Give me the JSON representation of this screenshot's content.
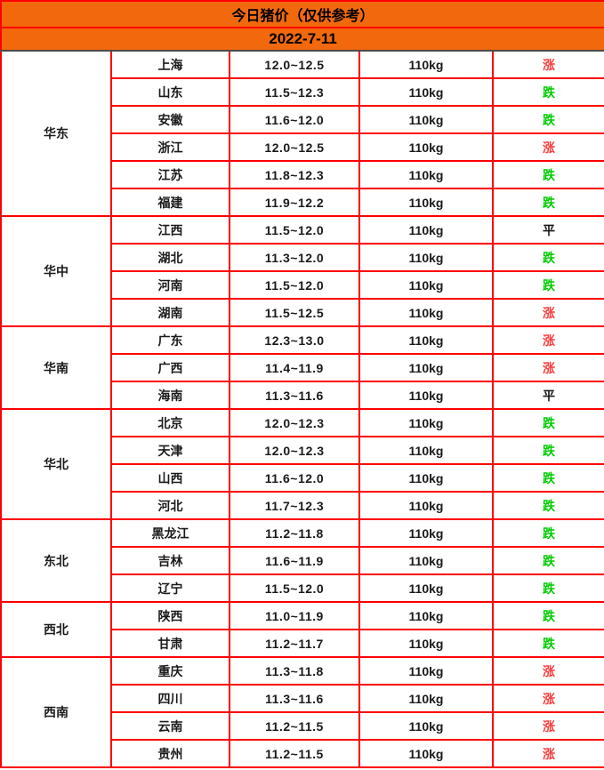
{
  "header": {
    "title": "今日猪价（仅供参考）",
    "date": "2022-7-11"
  },
  "colors": {
    "header_bg": "#f2690d",
    "border_red": "#fe0000",
    "dark_line": "#4a4a4a",
    "text": "#1a1a1a",
    "trend": {
      "涨": "#fa3c3c",
      "跌": "#00cc00",
      "平": "#1a1a1a"
    }
  },
  "table": {
    "regions": [
      {
        "name": "华东",
        "rows": [
          {
            "province": "上海",
            "price": "12.0~12.5",
            "weight": "110kg",
            "trend": "涨"
          },
          {
            "province": "山东",
            "price": "11.5~12.3",
            "weight": "110kg",
            "trend": "跌"
          },
          {
            "province": "安徽",
            "price": "11.6~12.0",
            "weight": "110kg",
            "trend": "跌"
          },
          {
            "province": "浙江",
            "price": "12.0~12.5",
            "weight": "110kg",
            "trend": "涨"
          },
          {
            "province": "江苏",
            "price": "11.8~12.3",
            "weight": "110kg",
            "trend": "跌"
          },
          {
            "province": "福建",
            "price": "11.9~12.2",
            "weight": "110kg",
            "trend": "跌"
          }
        ]
      },
      {
        "name": "华中",
        "rows": [
          {
            "province": "江西",
            "price": "11.5~12.0",
            "weight": "110kg",
            "trend": "平"
          },
          {
            "province": "湖北",
            "price": "11.3~12.0",
            "weight": "110kg",
            "trend": "跌"
          },
          {
            "province": "河南",
            "price": "11.5~12.0",
            "weight": "110kg",
            "trend": "跌"
          },
          {
            "province": "湖南",
            "price": "11.5~12.5",
            "weight": "110kg",
            "trend": "涨"
          }
        ]
      },
      {
        "name": "华南",
        "rows": [
          {
            "province": "广东",
            "price": "12.3~13.0",
            "weight": "110kg",
            "trend": "涨"
          },
          {
            "province": "广西",
            "price": "11.4~11.9",
            "weight": "110kg",
            "trend": "涨"
          },
          {
            "province": "海南",
            "price": "11.3~11.6",
            "weight": "110kg",
            "trend": "平"
          }
        ]
      },
      {
        "name": "华北",
        "rows": [
          {
            "province": "北京",
            "price": "12.0~12.3",
            "weight": "110kg",
            "trend": "跌"
          },
          {
            "province": "天津",
            "price": "12.0~12.3",
            "weight": "110kg",
            "trend": "跌"
          },
          {
            "province": "山西",
            "price": "11.6~12.0",
            "weight": "110kg",
            "trend": "跌"
          },
          {
            "province": "河北",
            "price": "11.7~12.3",
            "weight": "110kg",
            "trend": "跌"
          }
        ]
      },
      {
        "name": "东北",
        "rows": [
          {
            "province": "黑龙江",
            "price": "11.2~11.8",
            "weight": "110kg",
            "trend": "跌"
          },
          {
            "province": "吉林",
            "price": "11.6~11.9",
            "weight": "110kg",
            "trend": "跌"
          },
          {
            "province": "辽宁",
            "price": "11.5~12.0",
            "weight": "110kg",
            "trend": "跌"
          }
        ]
      },
      {
        "name": "西北",
        "rows": [
          {
            "province": "陕西",
            "price": "11.0~11.9",
            "weight": "110kg",
            "trend": "跌"
          },
          {
            "province": "甘肃",
            "price": "11.2~11.7",
            "weight": "110kg",
            "trend": "跌"
          }
        ]
      },
      {
        "name": "西南",
        "rows": [
          {
            "province": "重庆",
            "price": "11.3~11.8",
            "weight": "110kg",
            "trend": "涨"
          },
          {
            "province": "四川",
            "price": "11.3~11.6",
            "weight": "110kg",
            "trend": "涨"
          },
          {
            "province": "云南",
            "price": "11.2~11.5",
            "weight": "110kg",
            "trend": "涨"
          },
          {
            "province": "贵州",
            "price": "11.2~11.5",
            "weight": "110kg",
            "trend": "涨"
          }
        ]
      }
    ]
  }
}
